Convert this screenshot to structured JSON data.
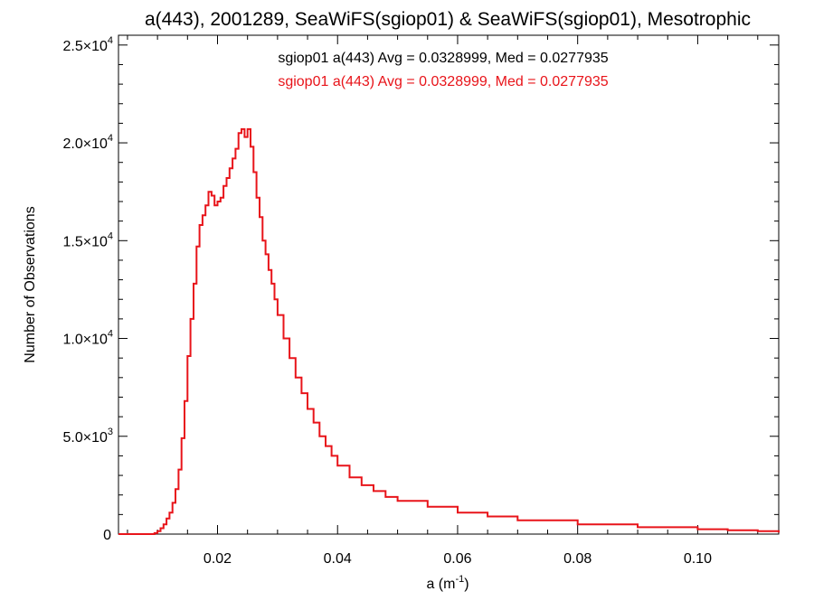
{
  "chart_data": {
    "type": "line",
    "title": "a(443), 2001289, SeaWiFS(sgiop01) & SeaWiFS(sgiop01), Mesotrophic",
    "xlabel_main": "a (m",
    "xlabel_sup": "-1",
    "xlabel_end": ")",
    "ylabel": "Number of Observations",
    "xlim": [
      0.0035,
      0.1135
    ],
    "ylim": [
      0,
      25500
    ],
    "x_ticks": [
      {
        "value": 0.02,
        "label": "0.02"
      },
      {
        "value": 0.04,
        "label": "0.04"
      },
      {
        "value": 0.06,
        "label": "0.06"
      },
      {
        "value": 0.08,
        "label": "0.08"
      },
      {
        "value": 0.1,
        "label": "0.10"
      }
    ],
    "y_ticks": [
      {
        "value": 0,
        "mant": "0",
        "exp": ""
      },
      {
        "value": 5000,
        "mant": "5.0×10",
        "exp": "3"
      },
      {
        "value": 10000,
        "mant": "1.0×10",
        "exp": "4"
      },
      {
        "value": 15000,
        "mant": "1.5×10",
        "exp": "4"
      },
      {
        "value": 20000,
        "mant": "2.0×10",
        "exp": "4"
      },
      {
        "value": 25000,
        "mant": "2.5×10",
        "exp": "4"
      }
    ],
    "annotations": [
      {
        "text": "sgiop01 a(443) Avg = 0.0328999, Med = 0.0277935",
        "color": "#000000"
      },
      {
        "text": "sgiop01 a(443) Avg = 0.0328999, Med = 0.0277935",
        "color": "#e8141a"
      }
    ],
    "series": [
      {
        "color": "#e8141a",
        "style": "step",
        "x": [
          0.0035,
          0.009,
          0.0095,
          0.01,
          0.0105,
          0.011,
          0.0115,
          0.012,
          0.0125,
          0.013,
          0.0135,
          0.014,
          0.0145,
          0.015,
          0.0155,
          0.016,
          0.0165,
          0.017,
          0.0175,
          0.018,
          0.0185,
          0.019,
          0.0195,
          0.02,
          0.0205,
          0.021,
          0.0215,
          0.022,
          0.0225,
          0.023,
          0.0235,
          0.024,
          0.0245,
          0.025,
          0.0255,
          0.026,
          0.0265,
          0.027,
          0.0275,
          0.028,
          0.0285,
          0.029,
          0.0295,
          0.03,
          0.031,
          0.032,
          0.033,
          0.034,
          0.035,
          0.036,
          0.037,
          0.038,
          0.039,
          0.04,
          0.042,
          0.044,
          0.046,
          0.048,
          0.05,
          0.055,
          0.06,
          0.065,
          0.07,
          0.08,
          0.09,
          0.1,
          0.105,
          0.11,
          0.1135
        ],
        "y": [
          0,
          0,
          50,
          150,
          300,
          500,
          800,
          1100,
          1600,
          2300,
          3300,
          4900,
          6800,
          9100,
          11000,
          12800,
          14700,
          15800,
          16300,
          16800,
          17500,
          17300,
          16800,
          17000,
          17200,
          17800,
          18200,
          18700,
          19200,
          19700,
          20500,
          20700,
          20300,
          20700,
          19800,
          18500,
          17200,
          16200,
          15000,
          14300,
          13500,
          12800,
          12000,
          11200,
          10000,
          9000,
          8000,
          7200,
          6400,
          5700,
          5000,
          4500,
          4000,
          3500,
          2900,
          2500,
          2200,
          1900,
          1700,
          1400,
          1100,
          900,
          700,
          500,
          350,
          250,
          200,
          150,
          80
        ]
      }
    ],
    "grid": false,
    "legend": "none"
  }
}
